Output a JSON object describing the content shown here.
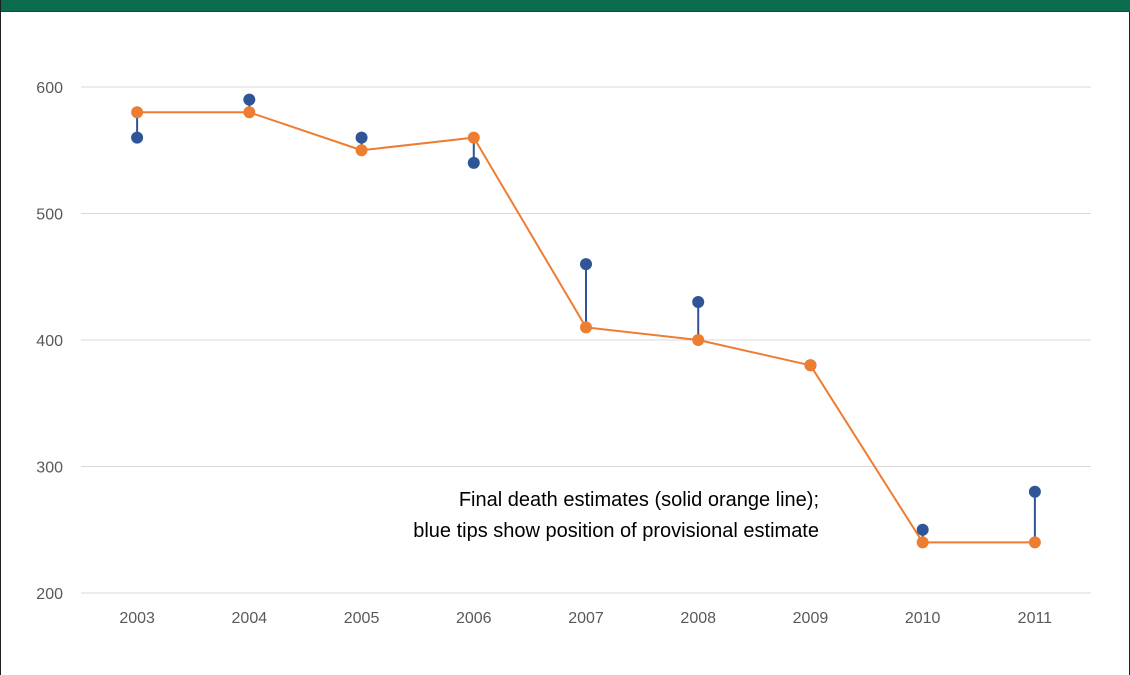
{
  "chart_data": {
    "type": "line",
    "title": "",
    "xlabel": "",
    "ylabel": "",
    "categories": [
      "2003",
      "2004",
      "2005",
      "2006",
      "2007",
      "2008",
      "2009",
      "2010",
      "2011"
    ],
    "yticks": [
      "200",
      "300",
      "400",
      "500",
      "600"
    ],
    "ylim": [
      200,
      650
    ],
    "grid": true,
    "series": [
      {
        "values": [
          580,
          580,
          550,
          560,
          410,
          400,
          380,
          240,
          240
        ],
        "color": "#ed7d31"
      },
      {
        "values": [
          560,
          590,
          560,
          540,
          460,
          430,
          380,
          250,
          280
        ],
        "color": "#2f5597"
      }
    ],
    "annotation": [
      "Final death estimates (solid orange line);",
      "blue tips show position of provisional estimate"
    ]
  }
}
